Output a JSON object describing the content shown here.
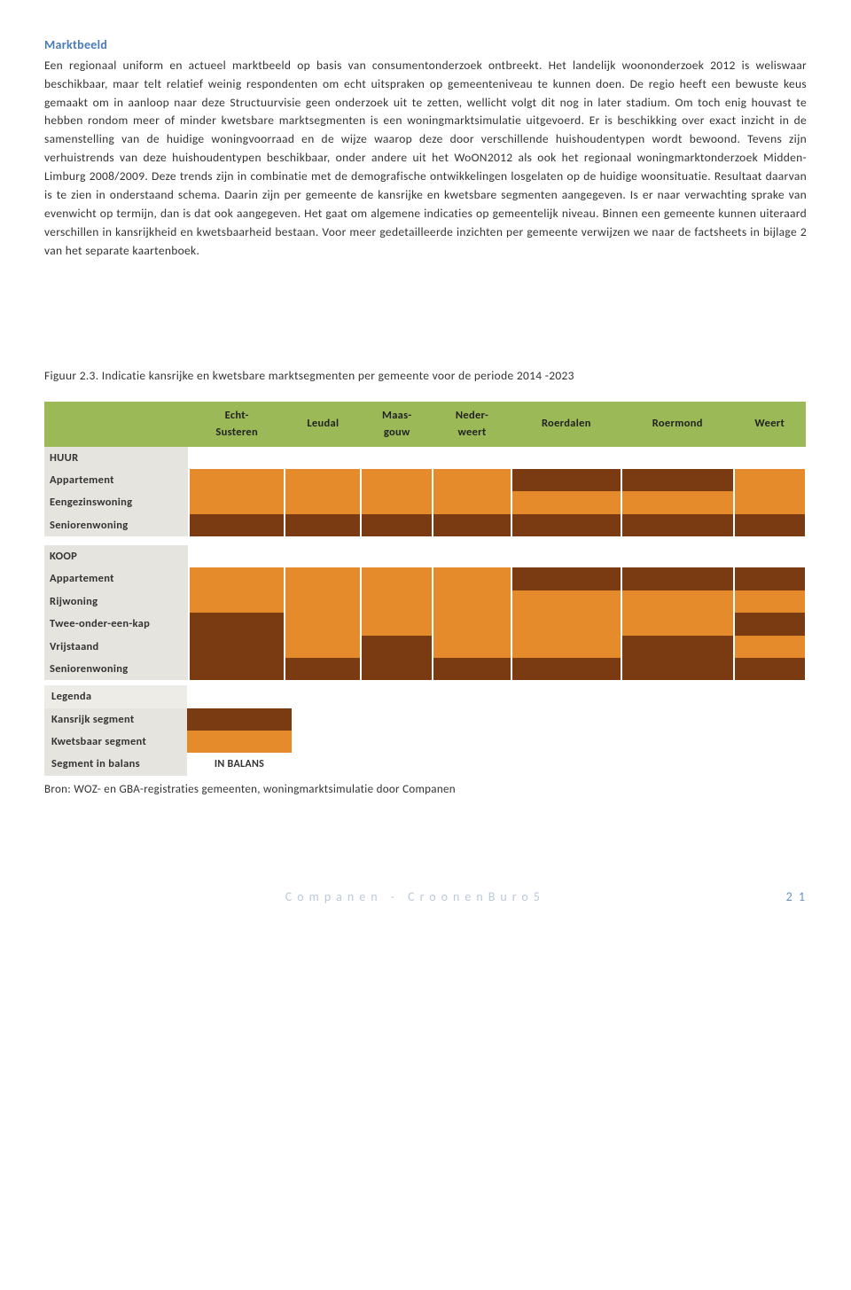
{
  "section_title": "Marktbeeld",
  "body_text": "Een regionaal uniform en actueel marktbeeld op basis van consumentonderzoek ontbreekt. Het landelijk woononderzoek 2012 is weliswaar beschikbaar, maar telt relatief weinig respondenten om echt uitspraken op gemeenteniveau te kunnen doen. De regio heeft een bewuste keus gemaakt om in aanloop naar deze Structuurvisie geen onderzoek uit te zetten, wellicht volgt dit nog in later stadium. Om toch enig houvast te hebben rondom meer of minder kwetsbare marktsegmenten is een woningmarktsimulatie uitgevoerd. Er is beschikking over exact inzicht in de samenstelling van de huidige woningvoorraad en de wijze waarop deze door verschillende huishoudentypen wordt bewoond. Tevens zijn verhuistrends van deze huishoudentypen beschikbaar, onder andere uit het WoON2012 als ook het regionaal woningmarktonderzoek Midden-Limburg 2008/2009. Deze trends zijn in combinatie met de demografische ontwikkelingen losgelaten op de huidige woonsituatie. Resultaat daarvan is te zien in onderstaand schema. Daarin zijn per gemeente de kansrijke en kwetsbare segmenten aangegeven. Is er naar verwachting sprake van evenwicht op termijn, dan is dat ook aangegeven. Het gaat om algemene indicaties op gemeentelijk niveau. Binnen een gemeente kunnen uiteraard verschillen in kansrijkheid en kwetsbaarheid bestaan. Voor meer gedetailleerde inzichten per gemeente verwijzen we naar de factsheets in bijlage 2 van het separate kaartenboek.",
  "figure_caption": "Figuur 2.3. Indicatie kansrijke en kwetsbare marktsegmenten per gemeente voor de periode 2014 -2023",
  "table": {
    "columns": [
      "Echt-\nSusteren",
      "Leudal",
      "Maas-\ngouw",
      "Neder-\nweert",
      "Roerdalen",
      "Roermond",
      "Weert"
    ],
    "groups": [
      {
        "title": "HUUR",
        "rows": [
          {
            "label": "Appartement",
            "cells": [
              "kwetsbaar",
              "kwetsbaar",
              "kwetsbaar",
              "kwetsbaar",
              "kansrijk",
              "kansrijk",
              "kwetsbaar"
            ]
          },
          {
            "label": "Eengezinswoning",
            "cells": [
              "kwetsbaar",
              "kwetsbaar",
              "kwetsbaar",
              "kwetsbaar",
              "kwetsbaar",
              "kwetsbaar",
              "kwetsbaar"
            ]
          },
          {
            "label": "Seniorenwoning",
            "cells": [
              "kansrijk",
              "kansrijk",
              "kansrijk",
              "kansrijk",
              "kansrijk",
              "kansrijk",
              "kansrijk"
            ]
          }
        ]
      },
      {
        "title": "KOOP",
        "rows": [
          {
            "label": "Appartement",
            "cells": [
              "kwetsbaar",
              "kwetsbaar",
              "kwetsbaar",
              "kwetsbaar",
              "kansrijk",
              "kansrijk",
              "kansrijk"
            ]
          },
          {
            "label": "Rijwoning",
            "cells": [
              "kwetsbaar",
              "kwetsbaar",
              "kwetsbaar",
              "kwetsbaar",
              "kwetsbaar",
              "kwetsbaar",
              "kwetsbaar"
            ]
          },
          {
            "label": "Twee-onder-een-kap",
            "cells": [
              "kansrijk",
              "kwetsbaar",
              "kwetsbaar",
              "kwetsbaar",
              "kwetsbaar",
              "kwetsbaar",
              "kansrijk"
            ]
          },
          {
            "label": "Vrijstaand",
            "cells": [
              "kansrijk",
              "kwetsbaar",
              "kansrijk",
              "kwetsbaar",
              "kwetsbaar",
              "kansrijk",
              "kwetsbaar"
            ]
          },
          {
            "label": "Seniorenwoning",
            "cells": [
              "kansrijk",
              "kansrijk",
              "kansrijk",
              "kansrijk",
              "kansrijk",
              "kansrijk",
              "kansrijk"
            ]
          }
        ]
      }
    ],
    "colors": {
      "header_bg": "#9bb956",
      "rowlabel_bg": "#e6e4df",
      "kansrijk": "#7a3a12",
      "kwetsbaar": "#e58b2c",
      "balans": "#ffffff"
    }
  },
  "legend": {
    "title": "Legenda",
    "items": [
      {
        "label": "Kansrijk segment",
        "swatch_color": "#7a3a12",
        "swatch_text": ""
      },
      {
        "label": "Kwetsbaar segment",
        "swatch_color": "#e58b2c",
        "swatch_text": ""
      },
      {
        "label": "Segment in balans",
        "swatch_color": "#ffffff",
        "swatch_text": "IN BALANS"
      }
    ]
  },
  "source": "Bron: WOZ- en GBA-registraties gemeenten, woningmarktsimulatie door Companen",
  "footer": {
    "org": "Companen - CroonenBuro5",
    "page": "2 1"
  }
}
